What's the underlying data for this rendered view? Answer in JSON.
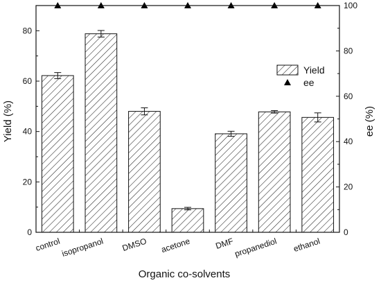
{
  "chart_data": {
    "type": "bar",
    "xlabel": "Organic co-solvents",
    "ylabel": "Yield (%)",
    "y2label": "ee (%)",
    "categories": [
      "control",
      "isopropanol",
      "DMSO",
      "acetone",
      "DMF",
      "propanediol",
      "ethanol"
    ],
    "ylim": [
      0,
      90
    ],
    "y2lim": [
      0,
      100
    ],
    "yticks": [
      0,
      20,
      40,
      60,
      80
    ],
    "y2ticks": [
      0,
      20,
      40,
      60,
      80,
      100
    ],
    "legend_position": "right-center",
    "grid": false,
    "series": [
      {
        "name": "Yield",
        "kind": "bar",
        "axis": "left",
        "pattern": "diagonal-hatch",
        "values": [
          62.2,
          78.8,
          48.0,
          9.4,
          39.1,
          47.8,
          45.6
        ],
        "errors": [
          1.2,
          1.3,
          1.4,
          0.5,
          1.0,
          0.5,
          1.8
        ]
      },
      {
        "name": "ee",
        "kind": "marker",
        "marker": "triangle-up",
        "axis": "right",
        "values": [
          100,
          100,
          100,
          100,
          100,
          100,
          100
        ]
      }
    ]
  }
}
